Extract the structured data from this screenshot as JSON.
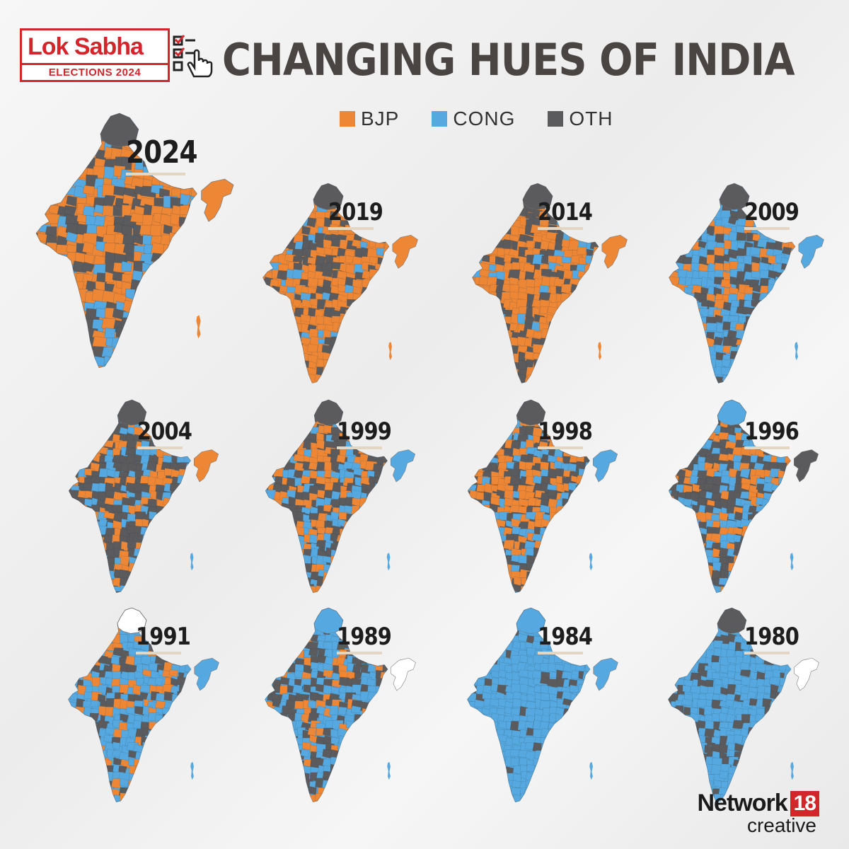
{
  "header": {
    "logo_title": "Lok Sabha",
    "logo_subtitle": "ELECTIONS 2024",
    "title": "CHANGING HUES OF INDIA"
  },
  "legend": [
    {
      "label": "BJP",
      "color": "#ee8735"
    },
    {
      "label": "CONG",
      "color": "#55a9e0"
    },
    {
      "label": "OTH",
      "color": "#5b5b5d"
    }
  ],
  "colors": {
    "bjp": "#ee8735",
    "cong": "#55a9e0",
    "oth": "#5b5b5d",
    "none": "#ffffff"
  },
  "maps": [
    {
      "year": "2024",
      "base": "bjp",
      "bjp": 0.48,
      "cong": 0.2,
      "oth": 0.32,
      "ne": "bjp",
      "jk": "oth"
    },
    {
      "year": "2019",
      "base": "bjp",
      "bjp": 0.62,
      "cong": 0.1,
      "oth": 0.28,
      "ne": "bjp",
      "jk": "oth"
    },
    {
      "year": "2014",
      "base": "bjp",
      "bjp": 0.58,
      "cong": 0.1,
      "oth": 0.32,
      "ne": "bjp",
      "jk": "oth"
    },
    {
      "year": "2009",
      "base": "cong",
      "bjp": 0.22,
      "cong": 0.46,
      "oth": 0.32,
      "ne": "cong",
      "jk": "oth"
    },
    {
      "year": "2004",
      "base": "oth",
      "bjp": 0.3,
      "cong": 0.28,
      "oth": 0.42,
      "ne": "bjp",
      "jk": "oth"
    },
    {
      "year": "1999",
      "base": "oth",
      "bjp": 0.36,
      "cong": 0.28,
      "oth": 0.36,
      "ne": "cong",
      "jk": "oth"
    },
    {
      "year": "1998",
      "base": "oth",
      "bjp": 0.34,
      "cong": 0.3,
      "oth": 0.36,
      "ne": "cong",
      "jk": "oth"
    },
    {
      "year": "1996",
      "base": "oth",
      "bjp": 0.32,
      "cong": 0.34,
      "oth": 0.34,
      "ne": "oth",
      "jk": "cong"
    },
    {
      "year": "1991",
      "base": "cong",
      "bjp": 0.24,
      "cong": 0.52,
      "oth": 0.24,
      "ne": "cong",
      "jk": "none"
    },
    {
      "year": "1989",
      "base": "cong",
      "bjp": 0.18,
      "cong": 0.44,
      "oth": 0.38,
      "ne": "none",
      "jk": "cong"
    },
    {
      "year": "1984",
      "base": "cong",
      "bjp": 0.0,
      "cong": 0.88,
      "oth": 0.12,
      "ne": "cong",
      "jk": "cong"
    },
    {
      "year": "1980",
      "base": "cong",
      "bjp": 0.0,
      "cong": 0.72,
      "oth": 0.28,
      "ne": "none",
      "jk": "oth"
    }
  ],
  "footer": {
    "brand": "Network",
    "brand_number": "18",
    "brand_sub": "creative"
  }
}
